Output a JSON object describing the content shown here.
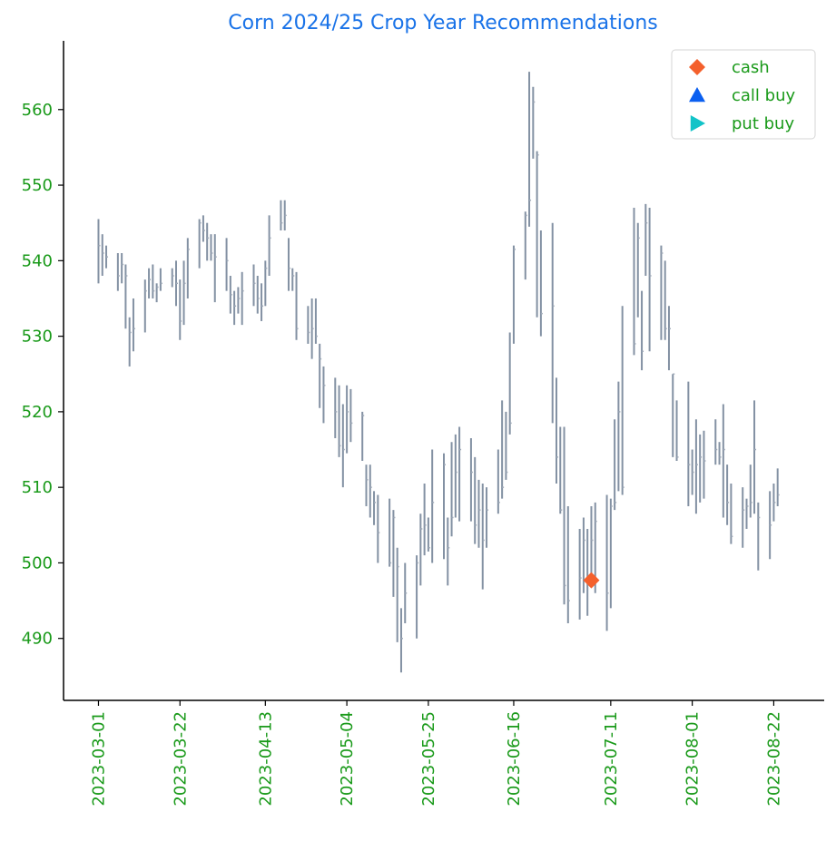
{
  "chart_data": {
    "type": "ohlc",
    "title": "Corn 2024/25 Crop Year Recommendations",
    "color": "#8391a3",
    "x": [
      "2023-03-01",
      "2023-03-02",
      "2023-03-03",
      "2023-03-06",
      "2023-03-07",
      "2023-03-08",
      "2023-03-09",
      "2023-03-10",
      "2023-03-13",
      "2023-03-14",
      "2023-03-15",
      "2023-03-16",
      "2023-03-17",
      "2023-03-20",
      "2023-03-21",
      "2023-03-22",
      "2023-03-23",
      "2023-03-24",
      "2023-03-27",
      "2023-03-28",
      "2023-03-29",
      "2023-03-30",
      "2023-03-31",
      "2023-04-03",
      "2023-04-04",
      "2023-04-05",
      "2023-04-06",
      "2023-04-07",
      "2023-04-10",
      "2023-04-11",
      "2023-04-12",
      "2023-04-13",
      "2023-04-14",
      "2023-04-17",
      "2023-04-18",
      "2023-04-19",
      "2023-04-20",
      "2023-04-21",
      "2023-04-24",
      "2023-04-25",
      "2023-04-26",
      "2023-04-27",
      "2023-04-28",
      "2023-05-01",
      "2023-05-02",
      "2023-05-03",
      "2023-05-04",
      "2023-05-05",
      "2023-05-08",
      "2023-05-09",
      "2023-05-10",
      "2023-05-11",
      "2023-05-12",
      "2023-05-15",
      "2023-05-16",
      "2023-05-17",
      "2023-05-18",
      "2023-05-19",
      "2023-05-22",
      "2023-05-23",
      "2023-05-24",
      "2023-05-25",
      "2023-05-26",
      "2023-05-29",
      "2023-05-30",
      "2023-05-31",
      "2023-06-01",
      "2023-06-02",
      "2023-06-05",
      "2023-06-06",
      "2023-06-07",
      "2023-06-08",
      "2023-06-09",
      "2023-06-12",
      "2023-06-13",
      "2023-06-14",
      "2023-06-15",
      "2023-06-16",
      "2023-06-19",
      "2023-06-20",
      "2023-06-21",
      "2023-06-22",
      "2023-06-23",
      "2023-06-26",
      "2023-06-27",
      "2023-06-28",
      "2023-06-29",
      "2023-06-30",
      "2023-07-03",
      "2023-07-04",
      "2023-07-05",
      "2023-07-06",
      "2023-07-07",
      "2023-07-10",
      "2023-07-11",
      "2023-07-12",
      "2023-07-13",
      "2023-07-14",
      "2023-07-17",
      "2023-07-18",
      "2023-07-19",
      "2023-07-20",
      "2023-07-21",
      "2023-07-24",
      "2023-07-25",
      "2023-07-26",
      "2023-07-27",
      "2023-07-28",
      "2023-07-31",
      "2023-08-01",
      "2023-08-02",
      "2023-08-03",
      "2023-08-04",
      "2023-08-07",
      "2023-08-08",
      "2023-08-09",
      "2023-08-10",
      "2023-08-11",
      "2023-08-14",
      "2023-08-15",
      "2023-08-16",
      "2023-08-17",
      "2023-08-18",
      "2023-08-21",
      "2023-08-22",
      "2023-08-23"
    ],
    "high": [
      545.5,
      543.5,
      542,
      541,
      541,
      539.5,
      532.5,
      535,
      537.5,
      539,
      539.5,
      537,
      539,
      539,
      540,
      537.5,
      540,
      543,
      545.5,
      546,
      545,
      543.5,
      543.5,
      543,
      538,
      536,
      536.5,
      538.5,
      539.5,
      538,
      537,
      540,
      546,
      548,
      548,
      543,
      539,
      538.5,
      534,
      535,
      535,
      529,
      526,
      524.5,
      523.5,
      521,
      523.5,
      523,
      520,
      513,
      513,
      509.5,
      509,
      508.5,
      507,
      502,
      494,
      500,
      501,
      506.5,
      510.5,
      506,
      515,
      514.5,
      506,
      516,
      517,
      518,
      516.5,
      514,
      511,
      510.5,
      510,
      515,
      521.5,
      520,
      530.5,
      542,
      546.5,
      565,
      563,
      554.5,
      544,
      545,
      524.5,
      518,
      518,
      507.5,
      504.5,
      506,
      504.5,
      507.5,
      508,
      509,
      508.5,
      519,
      524,
      534,
      547,
      545,
      536,
      547.5,
      547,
      542,
      540,
      534,
      525,
      521.5,
      524,
      515,
      519,
      517,
      517.5,
      519,
      516,
      521,
      513,
      510.5,
      510,
      508.5,
      513,
      521.5,
      508,
      509.5,
      510.5,
      512.5
    ],
    "low": [
      537,
      538,
      539,
      536,
      537,
      531,
      526,
      528,
      530.5,
      535,
      535,
      534.5,
      536,
      536.5,
      534,
      529.5,
      531.5,
      535,
      539,
      542.5,
      540,
      540,
      534.5,
      536,
      533,
      531.5,
      533,
      531.5,
      534,
      533,
      532,
      534,
      538,
      544,
      544,
      536,
      536,
      529.5,
      529,
      527,
      529,
      520.5,
      518.5,
      516.5,
      514,
      510,
      514.5,
      516,
      513.5,
      507.5,
      506,
      505,
      500,
      499.5,
      495.5,
      489.5,
      485.5,
      492,
      490,
      497,
      501,
      501.5,
      500,
      500.5,
      497,
      503.5,
      506,
      505.5,
      505.5,
      502.5,
      502,
      496.5,
      502,
      506.5,
      508.5,
      511,
      517,
      529,
      537.5,
      544.5,
      553.5,
      532.5,
      530,
      518.5,
      510.5,
      506.5,
      494.5,
      492,
      492.5,
      496,
      493,
      498,
      496,
      491,
      494,
      507,
      509.5,
      509,
      527.5,
      532.5,
      525.5,
      538,
      528,
      529.5,
      529.5,
      525.5,
      514,
      513.5,
      507.5,
      509,
      506.5,
      508,
      508.5,
      513,
      513,
      506,
      505,
      502.5,
      502,
      504.5,
      506,
      506.5,
      499,
      500.5,
      505.5,
      507.5
    ],
    "close": [
      542,
      541,
      540.5,
      538,
      539.5,
      538,
      530.5,
      531,
      536,
      537.5,
      536,
      536.5,
      537,
      538,
      537,
      532,
      537,
      541.5,
      545,
      544,
      543,
      541,
      540.5,
      540,
      535.5,
      534,
      535,
      536,
      537,
      535,
      534,
      539,
      543,
      545,
      546,
      539,
      538,
      531,
      530.5,
      531,
      530,
      527,
      523.5,
      520,
      515.5,
      515,
      520,
      518.5,
      519.5,
      511,
      510,
      508,
      504,
      500,
      506,
      499.5,
      490,
      496,
      500,
      504.5,
      505,
      502,
      508,
      513,
      502,
      506,
      512,
      515,
      512,
      505,
      507,
      503,
      507,
      508,
      510,
      512,
      518.5,
      541.5,
      546,
      548,
      561,
      554,
      533,
      534,
      514,
      507,
      497,
      495,
      498,
      503,
      497.5,
      503,
      505.5,
      496,
      507.5,
      508,
      520,
      510,
      529,
      543,
      528,
      545,
      538,
      541,
      531,
      531,
      525,
      514,
      513,
      512,
      513,
      514,
      513.5,
      515,
      514,
      515,
      508,
      503.5,
      507,
      507.5,
      508,
      515,
      506,
      505,
      508,
      509
    ],
    "markers": [
      {
        "name": "cash",
        "color": "#f4602c",
        "shape": "diamond",
        "x": [
          "2023-07-06"
        ],
        "values": [
          497.7
        ]
      },
      {
        "name": "call buy",
        "color": "#0b5ff0",
        "shape": "triangle-up",
        "x": [],
        "values": []
      },
      {
        "name": "put buy",
        "color": "#12c3c8",
        "shape": "triangle-right",
        "x": [],
        "values": []
      }
    ],
    "xlim": [
      "2023-02-20",
      "2023-09-04"
    ],
    "xticks": [
      "2023-03-01",
      "2023-03-22",
      "2023-04-13",
      "2023-05-04",
      "2023-05-25",
      "2023-06-16",
      "2023-07-11",
      "2023-08-01",
      "2023-08-22"
    ],
    "ylim": [
      481.8,
      569.1
    ],
    "yticks": [
      490,
      500,
      510,
      520,
      530,
      540,
      550,
      560
    ],
    "legend": "upper right",
    "tick_color": "#1a9a1a",
    "title_color": "#1a73e8"
  }
}
